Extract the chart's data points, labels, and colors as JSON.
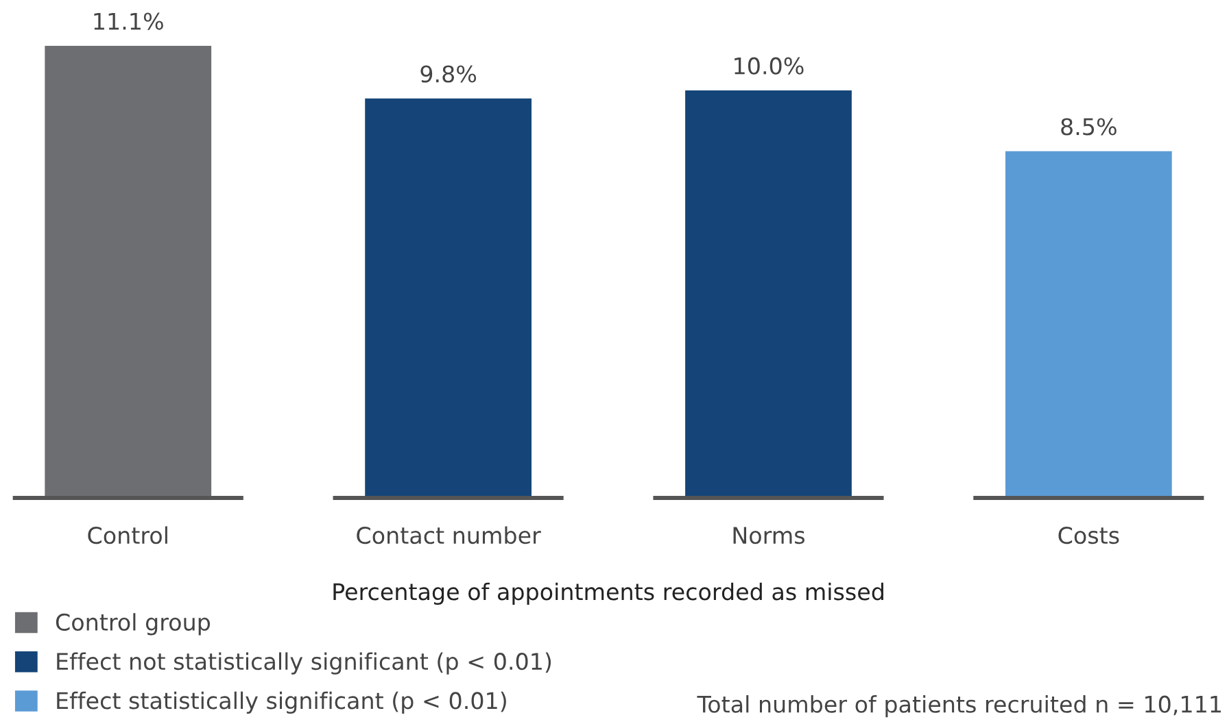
{
  "chart_data": {
    "type": "bar",
    "xlabel": "Percentage of appointments recorded as missed",
    "categories": [
      "Control",
      "Contact number",
      "Norms",
      "Costs"
    ],
    "stacked": true,
    "series": [
      {
        "name": "Control group",
        "color": "#6d6e71",
        "values": [
          11.1,
          null,
          null,
          null
        ],
        "value_labels": [
          "11.1%",
          null,
          null,
          null
        ]
      },
      {
        "name": "Effect not statistically significant (p < 0.01)",
        "color": "#154578",
        "values": [
          null,
          9.8,
          10.0,
          null
        ],
        "value_labels": [
          null,
          "9.8%",
          "10.0%",
          null
        ]
      },
      {
        "name": "Effect statistically significant (p < 0.01)",
        "color": "#5b9bd5",
        "values": [
          null,
          null,
          null,
          8.5
        ],
        "value_labels": [
          null,
          null,
          null,
          "8.5%"
        ]
      }
    ],
    "legend": "bottom left",
    "grid": false,
    "annotations": [
      "Total number of patients recruited n = 10,111"
    ]
  }
}
